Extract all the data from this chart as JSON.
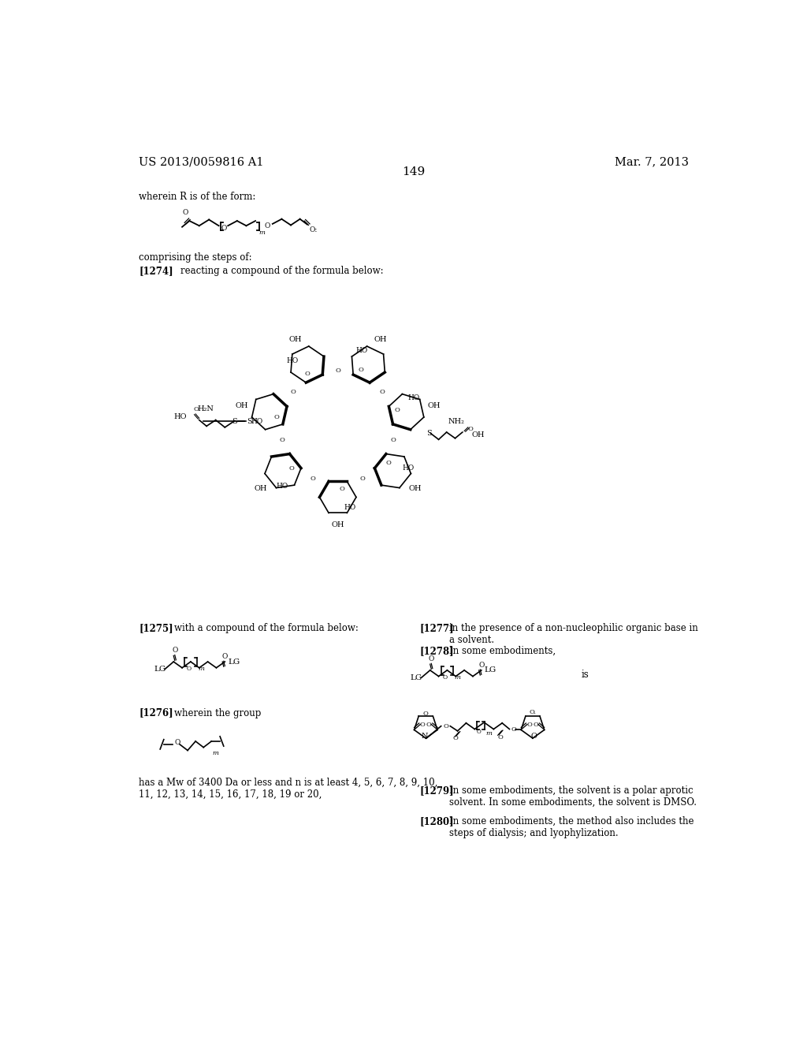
{
  "background_color": "#ffffff",
  "header_left": "US 2013/0059816 A1",
  "header_right": "Mar. 7, 2013",
  "page_number": "149",
  "text_color": "#000000",
  "font_size_header": 10.5,
  "font_size_body": 8.5,
  "font_size_page": 11,
  "wherein_r_text": "wherein R is of the form:",
  "comprising_text": "comprising the steps of:",
  "tag_1274": "[1274]",
  "text_1274": "reacting a compound of the formula below:",
  "tag_1275": "[1275]",
  "text_1275": "with a compound of the formula below:",
  "tag_1276": "[1276]",
  "text_1276": "wherein the group",
  "tag_1277": "[1277]",
  "text_1277": "in the presence of a non-nucleophilic organic base in\na solvent.",
  "tag_1278": "[1278]",
  "text_1278": "In some embodiments,",
  "tag_1279": "[1279]",
  "text_1279": "In some embodiments, the solvent is a polar aprotic\nsolvent. In some embodiments, the solvent is DMSO.",
  "tag_1280": "[1280]",
  "text_1280": "In some embodiments, the method also includes the\nsteps of dialysis; and lyophylization.",
  "mw_text": "has a Mw of 3400 Da or less and n is at least 4, 5, 6, 7, 8, 9, 10,\n11, 12, 13, 14, 15, 16, 17, 18, 19 or 20,"
}
